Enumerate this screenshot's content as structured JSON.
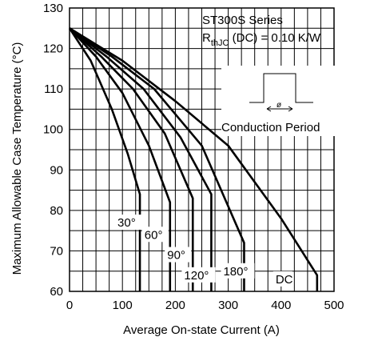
{
  "chart_data": {
    "type": "line",
    "title_line1": "ST300S Series",
    "title_line2_prefix": "R",
    "title_line2_sub": "thJC",
    "title_line2_suffix": " (DC) = 0.10 K/W",
    "xlabel": "Average On-state Current (A)",
    "ylabel": "Maximum Allowable Case Temperature (°C)",
    "xlim": [
      0,
      500
    ],
    "ylim": [
      60,
      130
    ],
    "xticks": [
      0,
      100,
      200,
      300,
      400,
      500
    ],
    "yticks": [
      60,
      70,
      80,
      90,
      100,
      110,
      120,
      130
    ],
    "xtick_labels": [
      "0",
      "100",
      "200",
      "300",
      "400",
      "500"
    ],
    "ytick_labels": [
      "60",
      "70",
      "80",
      "90",
      "100",
      "110",
      "120",
      "130"
    ],
    "inset_label": "Conduction Period",
    "inset_symbol": "ø",
    "series": [
      {
        "name": "30°",
        "x": [
          0,
          40,
          80,
          110,
          133,
          133
        ],
        "y": [
          125,
          117,
          105,
          94,
          84,
          60
        ]
      },
      {
        "name": "60°",
        "x": [
          0,
          50,
          100,
          150,
          190,
          190
        ],
        "y": [
          125,
          118,
          109,
          96,
          82,
          60
        ]
      },
      {
        "name": "90°",
        "x": [
          0,
          60,
          120,
          180,
          233,
          233
        ],
        "y": [
          125,
          118,
          110,
          99,
          83,
          60
        ]
      },
      {
        "name": "120°",
        "x": [
          0,
          70,
          140,
          210,
          268,
          268
        ],
        "y": [
          125,
          118,
          110,
          98,
          84,
          60
        ]
      },
      {
        "name": "180°",
        "x": [
          0,
          80,
          160,
          250,
          330,
          330
        ],
        "y": [
          125,
          118,
          110,
          96,
          72,
          60
        ]
      },
      {
        "name": "DC",
        "x": [
          0,
          100,
          200,
          300,
          400,
          468,
          468
        ],
        "y": [
          125,
          117,
          107,
          96,
          78,
          64,
          60
        ]
      }
    ]
  }
}
